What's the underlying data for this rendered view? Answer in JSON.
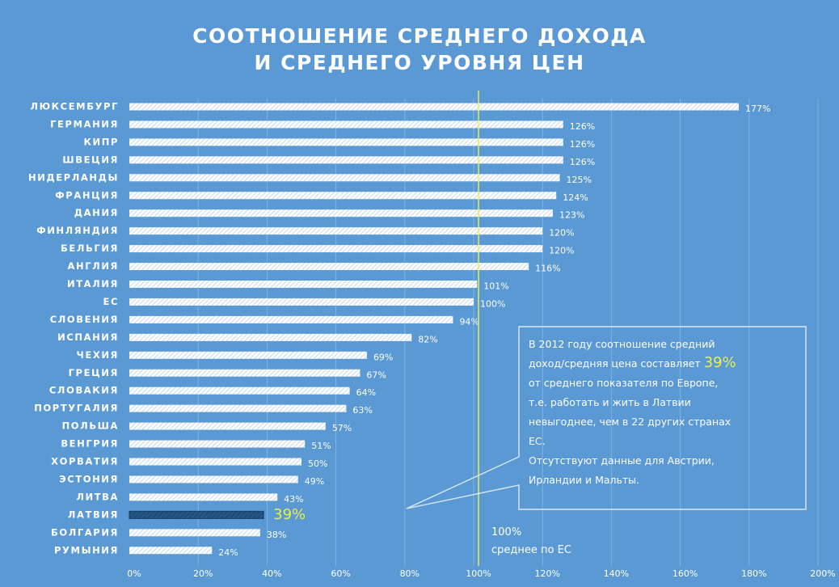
{
  "chart_data": {
    "type": "bar",
    "orientation": "horizontal",
    "title": [
      "СООТНОШЕНИЕ СРЕДНЕГО ДОХОДА",
      "И СРЕДНЕГО УРОВНЯ ЦЕН"
    ],
    "categories": [
      "ЛЮКСЕМБУРГ",
      "ГЕРМАНИЯ",
      "КИПР",
      "ШВЕЦИЯ",
      "НИДЕРЛАНДЫ",
      "ФРАНЦИЯ",
      "ДАНИЯ",
      "ФИНЛЯНДИЯ",
      "БЕЛЬГИЯ",
      "АНГЛИЯ",
      "ИТАЛИЯ",
      "ЕС",
      "СЛОВЕНИЯ",
      "ИСПАНИЯ",
      "ЧЕХИЯ",
      "ГРЕЦИЯ",
      "СЛОВАКИЯ",
      "ПОРТУГАЛИЯ",
      "ПОЛЬША",
      "ВЕНГРИЯ",
      "ХОРВАТИЯ",
      "ЭСТОНИЯ",
      "ЛИТВА",
      "ЛАТВИЯ",
      "БОЛГАРИЯ",
      "РУМЫНИЯ"
    ],
    "values": [
      177,
      126,
      126,
      126,
      125,
      124,
      123,
      120,
      120,
      116,
      101,
      100,
      94,
      82,
      69,
      67,
      64,
      63,
      57,
      51,
      50,
      49,
      43,
      39,
      38,
      24
    ],
    "value_labels": [
      "177%",
      "126%",
      "126%",
      "126%",
      "125%",
      "124%",
      "123%",
      "120%",
      "120%",
      "116%",
      "101%",
      "100%",
      "94%",
      "82%",
      "69%",
      "67%",
      "64%",
      "63%",
      "57%",
      "51%",
      "50%",
      "49%",
      "43%",
      "39%",
      "38%",
      "24%"
    ],
    "highlight": "ЛАТВИЯ",
    "xlim": [
      0,
      200
    ],
    "xticks": [
      0,
      20,
      40,
      60,
      80,
      100,
      120,
      140,
      160,
      180,
      200
    ],
    "xtick_labels": [
      "0%",
      "20%",
      "40%",
      "60%",
      "80%",
      "100%",
      "120%",
      "140%",
      "160%",
      "180%",
      "200%"
    ],
    "grid": "vertical",
    "reference_line": {
      "value": 100,
      "label_lines": [
        "100%",
        "среднее по ЕС"
      ]
    },
    "colors": {
      "background": "#5a99d3",
      "bar": "#e6f0fa",
      "bar_highlight": "#1f4e79",
      "reference_line": "#e8f04a",
      "highlight_text": "#e8f04a"
    }
  },
  "annotation": {
    "lines": [
      [
        {
          "t": "В 2012 году соотношение средний"
        }
      ],
      [
        {
          "t": "доход/средняя цена составляет "
        },
        {
          "t": "39%",
          "hl": true
        }
      ],
      [
        {
          "t": "от среднего показателя по Европе,"
        }
      ],
      [
        {
          "t": "т.е. работать и жить в Латвии"
        }
      ],
      [
        {
          "t": "невыгоднее, чем в 22 других странах"
        }
      ],
      [
        {
          "t": "ЕС."
        }
      ],
      [
        {
          "t": "Отсутствуют данные для Австрии,"
        }
      ],
      [
        {
          "t": "Ирландии и Мальты."
        }
      ]
    ]
  }
}
